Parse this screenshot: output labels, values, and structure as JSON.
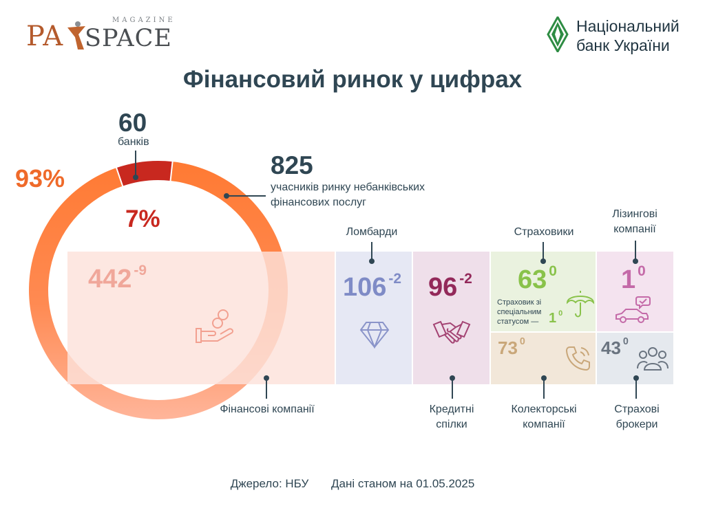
{
  "header": {
    "logo_pay": "PA",
    "logo_space": "SPACE",
    "logo_magazine": "MAGAZINE",
    "nbu_name": "Національний\nбанк України"
  },
  "title": "Фінансовий ринок у цифрах",
  "chart_data": {
    "type": "pie",
    "title": "Фінансовий ринок у цифрах",
    "slices": [
      {
        "label": "банків",
        "count": "60",
        "percent": "7%",
        "value": 7,
        "color": "#c8281f"
      },
      {
        "label": "учасників ринку небанківських фінансових послуг",
        "count": "825",
        "percent": "93%",
        "value": 93,
        "color": "#ef6a2a"
      }
    ],
    "breakdown": [
      {
        "name": "Фінансові компанії",
        "value": "442",
        "change": "-9"
      },
      {
        "name": "Ломбарди",
        "value": "106",
        "change": "-2"
      },
      {
        "name": "Кредитні спілки",
        "value": "96",
        "change": "-2"
      },
      {
        "name": "Страховики",
        "value": "63",
        "change": "0"
      },
      {
        "name": "Лізингові компанії",
        "value": "1",
        "change": "0"
      },
      {
        "name": "Колекторські компанії",
        "value": "73",
        "change": "0"
      },
      {
        "name": "Страхові брокери",
        "value": "43",
        "change": "0"
      }
    ]
  },
  "labels": {
    "banks_count": "60",
    "banks_label": "банків",
    "banks_pct": "7%",
    "nbfi_count": "825",
    "nbfi_label": "учасників ринку небанківських фінансових послуг",
    "nbfi_pct": "93%",
    "fin_companies": "Фінансові компанії",
    "pawnshops": "Ломбарди",
    "credit_unions": "Кредитні\nспілки",
    "insurers": "Страховики",
    "leasing": "Лізингові\nкомпанії",
    "collectors": "Колекторські\nкомпанії",
    "brokers": "Страхові\nброкери",
    "insurer_special": "Страховик зі спеціальним статусом —",
    "insurer_special_value": "1",
    "insurer_special_change": "0"
  },
  "colors": {
    "fin": "#fde7e1",
    "pawn": "#e6e8f4",
    "credit": "#efdfea",
    "ins": "#eaf2df",
    "leasing": "#f4e3ef",
    "collect": "#f2e7d9",
    "broker": "#e5e9ee",
    "num_fin": "#f0a79a",
    "num_pawn": "#7f8bc6",
    "num_credit": "#93295a",
    "num_ins": "#89c24a",
    "num_leasing": "#c46aa8",
    "num_collect": "#c9a77a",
    "num_broker": "#6a7480"
  },
  "footer": {
    "source": "Джерело: НБУ",
    "date": "Дані станом на 01.05.2025"
  }
}
